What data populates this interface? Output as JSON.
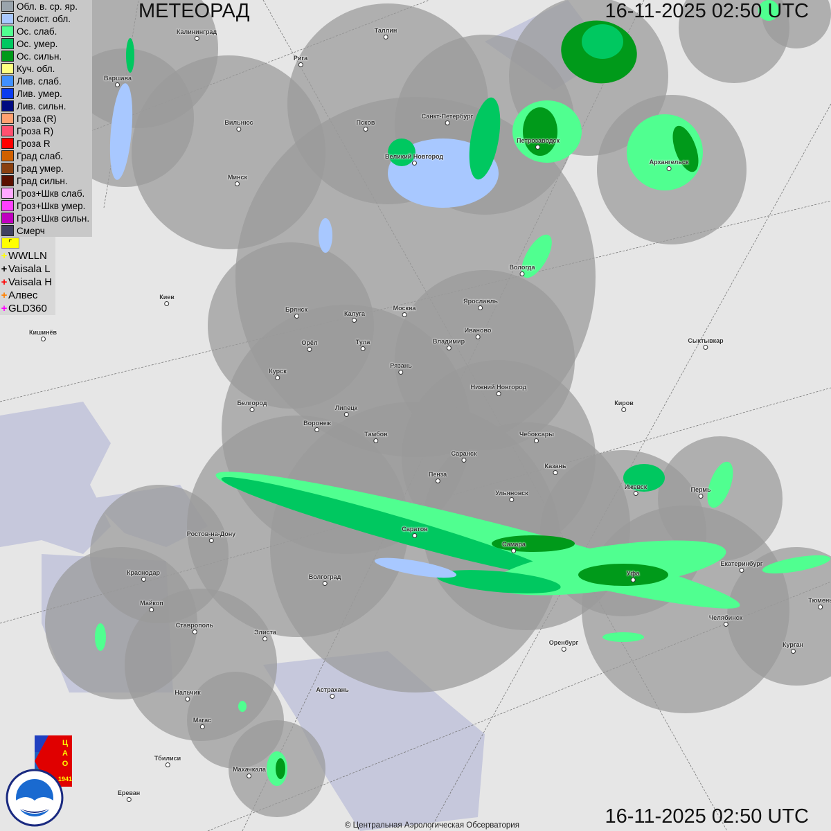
{
  "header": {
    "title": "МЕТЕОРАД",
    "timestamp_top": "16-11-2025  02:50 UTC",
    "timestamp_bottom": "16-11-2025  02:50 UTC"
  },
  "legend": [
    {
      "label": "Обл. в. ср. яр.",
      "color": "#9aa4ac"
    },
    {
      "label": "Слоист. обл.",
      "color": "#a8c8ff"
    },
    {
      "label": "Ос. слаб.",
      "color": "#50ff90"
    },
    {
      "label": "Ос. умер.",
      "color": "#00c860"
    },
    {
      "label": "Ос. сильн.",
      "color": "#009a1a"
    },
    {
      "label": "Куч. обл.",
      "color": "#ffff80"
    },
    {
      "label": "Лив. слаб.",
      "color": "#4090ff"
    },
    {
      "label": "Лив. умер.",
      "color": "#0a3cf0"
    },
    {
      "label": "Лив. сильн.",
      "color": "#000a80"
    },
    {
      "label": "Гроза (R)",
      "color": "#ffa070"
    },
    {
      "label": "Гроза R)",
      "color": "#ff5070"
    },
    {
      "label": "Гроза R",
      "color": "#ff0000"
    },
    {
      "label": "Град слаб.",
      "color": "#d06000"
    },
    {
      "label": "Град умер.",
      "color": "#8a4010"
    },
    {
      "label": "Град сильн.",
      "color": "#5a1000"
    },
    {
      "label": "Гроз+Шкв слаб.",
      "color": "#ffa8ff"
    },
    {
      "label": "Гроз+Шкв умер.",
      "color": "#ff40ff"
    },
    {
      "label": "Гроз+Шкв сильн.",
      "color": "#c000c0"
    },
    {
      "label": "Смерч",
      "color": "#404060"
    }
  ],
  "lightning_sources": [
    {
      "label": "WWLLN",
      "color": "#ffff00"
    },
    {
      "label": "Vaisala L",
      "color": "#000000"
    },
    {
      "label": "Vaisala H",
      "color": "#ff0000"
    },
    {
      "label": "Алвес",
      "color": "#ff8000"
    },
    {
      "label": "GLD360",
      "color": "#ff00ff"
    }
  ],
  "mode_button_icon": "arrow-corner-icon",
  "cities": [
    "Калининград",
    "Таллин",
    "Рига",
    "Варшава",
    "Вильнюс",
    "Псков",
    "Санкт-Петербург",
    "Петрозаводск",
    "Архангельск",
    "Великий Новгород",
    "Минск",
    "Вологда",
    "Киев",
    "Брянск",
    "Калуга",
    "Москва",
    "Ярославль",
    "Иваново",
    "Кишинёв",
    "Орёл",
    "Тула",
    "Владимир",
    "Сыктывкар",
    "Рязань",
    "Курск",
    "Нижний Новгород",
    "Белгород",
    "Киров",
    "Липецк",
    "Воронеж",
    "Тамбов",
    "Чебоксары",
    "Саранск",
    "Пенза",
    "Казань",
    "Ижевск",
    "Пермь",
    "Ульяновск",
    "Ростов-на-Дону",
    "Саратов",
    "Самара",
    "Краснодар",
    "Волгоград",
    "Уфа",
    "Екатеринбург",
    "Майкоп",
    "Челябинск",
    "Ставрополь",
    "Элиста",
    "Оренбург",
    "Курган",
    "Тюмень",
    "Астрахань",
    "Нальчик",
    "Магас",
    "Махачкала",
    "Тбилиси",
    "Ереван"
  ],
  "logos": {
    "cao": "ЦАО 1941",
    "roshydromet": "РОСГИДРОМЕТ ROSHYDROMET"
  },
  "copyright": "© Центральная Аэрологическая Обсерватория"
}
